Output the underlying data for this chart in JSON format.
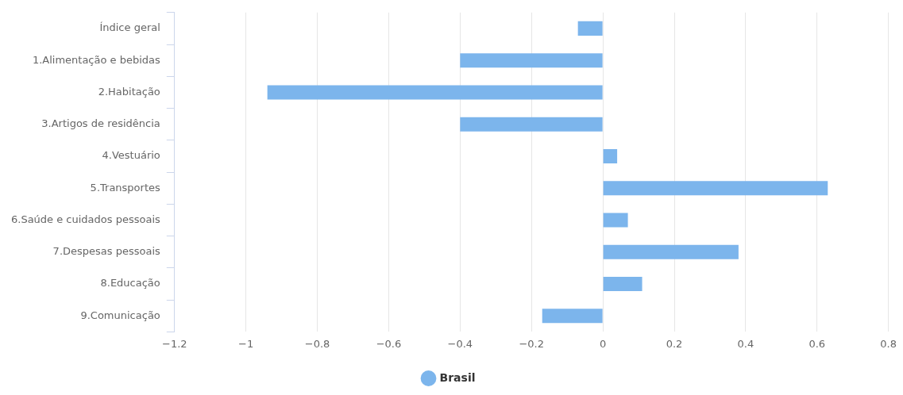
{
  "chart_data": {
    "type": "bar",
    "orientation": "horizontal",
    "categories": [
      "Índice geral",
      "1.Alimentação e bebidas",
      "2.Habitação",
      "3.Artigos de residência",
      "4.Vestuário",
      "5.Transportes",
      "6.Saúde e cuidados pessoais",
      "7.Despesas pessoais",
      "8.Educação",
      "9.Comunicação"
    ],
    "series": [
      {
        "name": "Brasil",
        "color": "#7cb5ec",
        "values": [
          -0.07,
          -0.4,
          -0.94,
          -0.4,
          0.04,
          0.63,
          0.07,
          0.38,
          0.11,
          -0.17
        ]
      }
    ],
    "xlim": [
      -1.2,
      0.8
    ],
    "xticks": [
      -1.2,
      -1,
      -0.8,
      -0.6,
      -0.4,
      -0.2,
      0,
      0.2,
      0.4,
      0.6,
      0.8
    ],
    "grid": "x",
    "legend": "bottom"
  }
}
